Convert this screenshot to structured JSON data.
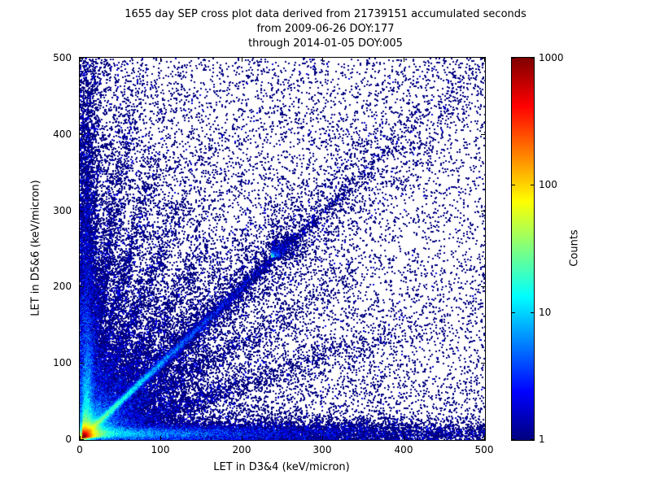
{
  "chart_data": {
    "type": "scatter",
    "title": "1655 day SEP cross plot data derived from 21739151 accumulated seconds",
    "subtitle_from": "from 2009-06-26 DOY:177",
    "subtitle_through": "through 2014-01-05 DOY:005",
    "xlabel": "LET in D3&4 (keV/micron)",
    "ylabel": "LET in D5&6 (keV/micron)",
    "xlim": [
      0,
      500
    ],
    "ylim": [
      0,
      500
    ],
    "xtick_labels": [
      "0",
      "100",
      "200",
      "300",
      "400",
      "500"
    ],
    "ytick_labels": [
      "0",
      "100",
      "200",
      "300",
      "400",
      "500"
    ],
    "grid": false,
    "colorbar": {
      "label": "Counts",
      "scale": "log",
      "range": [
        1,
        1000
      ],
      "tick_values": [
        1,
        10,
        100,
        1000
      ],
      "tick_labels": [
        "1",
        "10",
        "100",
        "1000"
      ],
      "colormap": "jet",
      "colormap_stops": [
        "#00007f",
        "#0000ff",
        "#00ffff",
        "#7fff7f",
        "#ffff00",
        "#ff0000",
        "#7f0000"
      ]
    },
    "density_features": [
      {
        "kind": "blob",
        "cx": 3,
        "cy": 3,
        "scale": 7,
        "n": 60000
      },
      {
        "kind": "blob",
        "cx": 4,
        "cy": 4,
        "scale": 22,
        "n": 15000
      },
      {
        "kind": "blob",
        "cx": 6,
        "cy": 6,
        "scale": 55,
        "n": 7000
      },
      {
        "kind": "ray",
        "x0": 0,
        "y0": 0,
        "angle": 45,
        "dscale": 95,
        "len": 707,
        "sigma": 2,
        "sigmaGrow": 0.004,
        "n": 17000
      },
      {
        "kind": "ray",
        "x0": 0,
        "y0": 0,
        "angle": 45,
        "dscale": 300,
        "len": 707,
        "sigma": 7,
        "sigmaGrow": 0.035,
        "n": 5000
      },
      {
        "kind": "blob",
        "cx": 236,
        "cy": 239,
        "scale": 13,
        "n": 800
      },
      {
        "kind": "ray",
        "x0": 0,
        "y0": 8,
        "angle": 0,
        "dscale": 140,
        "len": 500,
        "sigma": 4,
        "sigmaGrow": 0.012,
        "n": 20000
      },
      {
        "kind": "ray",
        "x0": 0,
        "y0": 14,
        "angle": 0,
        "dscale": 420,
        "len": 500,
        "sigma": 9,
        "sigmaGrow": 0,
        "n": 3000
      },
      {
        "kind": "ray",
        "x0": 8,
        "y0": 0,
        "angle": 90,
        "dscale": 120,
        "len": 500,
        "sigma": 3.5,
        "sigmaGrow": 0.012,
        "n": 13000
      },
      {
        "kind": "ray",
        "x0": 10,
        "y0": 0,
        "angle": 90,
        "dscale": 380,
        "len": 500,
        "sigma": 7,
        "sigmaGrow": 0,
        "n": 2200
      },
      {
        "kind": "ray",
        "x0": 0,
        "y0": 0,
        "angle": 82,
        "dscale": 160,
        "len": 430,
        "sigma": 2.5,
        "sigmaGrow": 0.012,
        "n": 2600
      },
      {
        "kind": "ray",
        "x0": 0,
        "y0": 0,
        "angle": 76,
        "dscale": 150,
        "len": 390,
        "sigma": 2.5,
        "sigmaGrow": 0.012,
        "n": 2200
      },
      {
        "kind": "ray",
        "x0": 0,
        "y0": 0,
        "angle": 68,
        "dscale": 140,
        "len": 340,
        "sigma": 2.5,
        "sigmaGrow": 0.015,
        "n": 1900
      },
      {
        "kind": "ray",
        "x0": 0,
        "y0": 0,
        "angle": 58,
        "dscale": 130,
        "len": 300,
        "sigma": 3,
        "sigmaGrow": 0.015,
        "n": 1500
      },
      {
        "kind": "ray",
        "x0": 0,
        "y0": 0,
        "angle": 33,
        "dscale": 140,
        "len": 420,
        "sigma": 3,
        "sigmaGrow": 0.02,
        "n": 1600
      },
      {
        "kind": "ray",
        "x0": 0,
        "y0": 0,
        "angle": 20,
        "dscale": 160,
        "len": 530,
        "sigma": 3,
        "sigmaGrow": 0.02,
        "n": 1900
      },
      {
        "kind": "wedge",
        "a0": 46,
        "a1": 90,
        "rscale": 230,
        "n": 6500
      },
      {
        "kind": "wedge",
        "a0": 0,
        "a1": 44,
        "rscale": 200,
        "n": 4500
      },
      {
        "kind": "wedge",
        "a0": 80,
        "a1": 90,
        "rscale": 330,
        "n": 2000
      },
      {
        "kind": "uniform",
        "pow": 1,
        "n": 6000
      },
      {
        "kind": "uniform",
        "pow": 2.2,
        "n": 5200
      }
    ]
  }
}
